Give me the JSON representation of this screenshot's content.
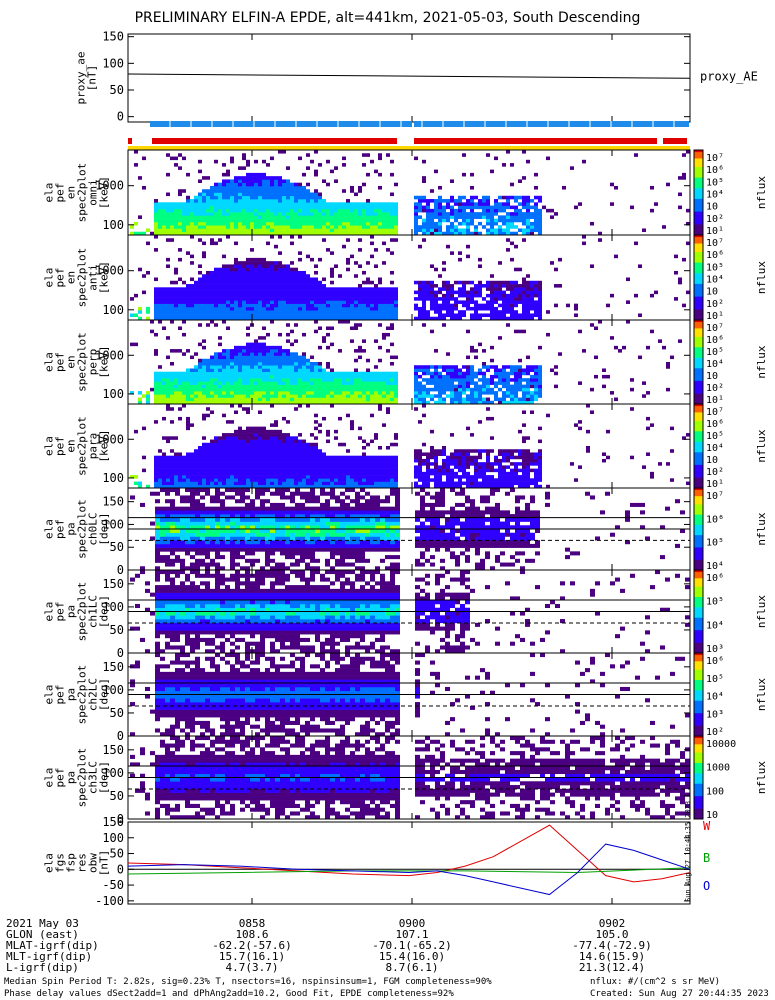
{
  "title": "PRELIMINARY ELFIN-A EPDE, alt=441km, 2021-05-03, South Descending",
  "chart_data": [
    {
      "type": "line",
      "panel": "proxy_ae",
      "ylabel": [
        "proxy_ae",
        "[nT]"
      ],
      "ylim": [
        -10,
        155
      ],
      "yticks": [
        "150",
        "100",
        "50",
        "0"
      ],
      "series": [
        {
          "name": "proxy_AE",
          "x": [
            0,
            1
          ],
          "values": [
            80,
            72
          ]
        }
      ],
      "legend_placement": "right"
    },
    {
      "type": "heatmap",
      "panel": "ela_pef_en_spec2plot_omni",
      "ylabel": [
        "ela",
        "pef",
        "en",
        "spec2plot",
        "omni",
        "[keV]"
      ],
      "yticks": [
        "1000",
        "100"
      ],
      "scale": "log",
      "colorbar_label": "nflux",
      "colorbar_ticks": [
        "10⁷",
        "10⁶",
        "10⁵",
        "10⁴",
        "10⁳",
        "10²",
        "10¹"
      ]
    },
    {
      "type": "heatmap",
      "panel": "ela_pef_en_spec2plot_anti",
      "ylabel": [
        "ela",
        "pef",
        "en",
        "spec2plot",
        "anti",
        "[keV]"
      ],
      "yticks": [
        "1000",
        "100"
      ],
      "scale": "log",
      "colorbar_label": "nflux",
      "colorbar_ticks": [
        "10⁷",
        "10⁶",
        "10⁵",
        "10⁴",
        "10⁳",
        "10²",
        "10¹"
      ]
    },
    {
      "type": "heatmap",
      "panel": "ela_pef_en_spec2plot_perp",
      "ylabel": [
        "ela",
        "pef",
        "en",
        "spec2plot",
        "perp",
        "[keV]"
      ],
      "yticks": [
        "1000",
        "100"
      ],
      "scale": "log",
      "colorbar_label": "nflux",
      "colorbar_ticks": [
        "10⁷",
        "10⁶",
        "10⁵",
        "10⁴",
        "10⁳",
        "10²",
        "10¹"
      ]
    },
    {
      "type": "heatmap",
      "panel": "ela_pef_en_spec2plot_para",
      "ylabel": [
        "ela",
        "pef",
        "en",
        "spec2plot",
        "para",
        "[keV]"
      ],
      "yticks": [
        "1000",
        "100"
      ],
      "scale": "log",
      "colorbar_label": "nflux",
      "colorbar_ticks": [
        "10⁷",
        "10⁶",
        "10⁵",
        "10⁴",
        "10⁳",
        "10²",
        "10¹"
      ]
    },
    {
      "type": "heatmap",
      "panel": "ela_pef_pa_spec2plot_ch0LC",
      "ylabel": [
        "ela",
        "pef",
        "pa",
        "spec2plot",
        "ch0LC",
        "[deg]"
      ],
      "yticks": [
        "150",
        "100",
        "50",
        "0"
      ],
      "ylim": [
        0,
        180
      ],
      "colorbar_label": "nflux",
      "colorbar_ticks": [
        "10⁷",
        "10⁶",
        "10⁵",
        "10⁴"
      ]
    },
    {
      "type": "heatmap",
      "panel": "ela_pef_pa_spec2plot_ch1LC",
      "ylabel": [
        "ela",
        "pef",
        "pa",
        "spec2plot",
        "ch1LC",
        "[deg]"
      ],
      "yticks": [
        "150",
        "100",
        "50",
        "0"
      ],
      "ylim": [
        0,
        180
      ],
      "colorbar_label": "nflux",
      "colorbar_ticks": [
        "10⁶",
        "10⁵",
        "10⁴",
        "10³"
      ]
    },
    {
      "type": "heatmap",
      "panel": "ela_pef_pa_spec2plot_ch2LC",
      "ylabel": [
        "ela",
        "pef",
        "pa",
        "spec2plot",
        "ch2LC",
        "[deg]"
      ],
      "yticks": [
        "150",
        "100",
        "50",
        "0"
      ],
      "ylim": [
        0,
        180
      ],
      "colorbar_label": "nflux",
      "colorbar_ticks": [
        "10⁶",
        "10⁵",
        "10⁴",
        "10³",
        "10²"
      ]
    },
    {
      "type": "heatmap",
      "panel": "ela_pef_pa_spec2plot_ch3LC",
      "ylabel": [
        "ela",
        "pef",
        "pa",
        "spec2plot",
        "ch3LC",
        "[deg]"
      ],
      "yticks": [
        "150",
        "100",
        "50",
        "0"
      ],
      "ylim": [
        0,
        180
      ],
      "colorbar_label": "nflux",
      "colorbar_ticks": [
        "10000",
        "1000",
        "100",
        "10"
      ]
    },
    {
      "type": "line",
      "panel": "ela_fgs_fsp_res_obw",
      "ylabel": [
        "ela",
        "fgs",
        "fsp",
        "res",
        "obw",
        "[nT]"
      ],
      "ylim": [
        -110,
        150
      ],
      "yticks": [
        "150",
        "100",
        "50",
        "0",
        "-50",
        "-100"
      ],
      "series": [
        {
          "name": "W",
          "color": "#e00000",
          "x": [
            0,
            0.1,
            0.2,
            0.3,
            0.4,
            0.5,
            0.55,
            0.6,
            0.65,
            0.7,
            0.75,
            0.8,
            0.85,
            0.9,
            0.95,
            1.0
          ],
          "values": [
            20,
            15,
            5,
            -5,
            -15,
            -20,
            -10,
            10,
            40,
            90,
            140,
            60,
            -20,
            -40,
            -30,
            -10
          ]
        },
        {
          "name": "B",
          "color": "#00a000",
          "x": [
            0,
            0.2,
            0.4,
            0.6,
            0.8,
            1.0
          ],
          "values": [
            -15,
            -10,
            -5,
            -5,
            -10,
            5
          ]
        },
        {
          "name": "O",
          "color": "#0000d0",
          "x": [
            0,
            0.1,
            0.2,
            0.3,
            0.4,
            0.5,
            0.55,
            0.6,
            0.65,
            0.7,
            0.75,
            0.8,
            0.85,
            0.9,
            0.95,
            1.0
          ],
          "values": [
            10,
            15,
            10,
            0,
            -5,
            -10,
            -5,
            -20,
            -40,
            -60,
            -80,
            -10,
            80,
            60,
            30,
            0
          ]
        }
      ],
      "legend_placement": "right"
    }
  ],
  "x_axis": {
    "tick_labels": [
      "0858",
      "0900",
      "0902"
    ],
    "rows": [
      {
        "label": "2021 May 03",
        "values": [
          "",
          "",
          ""
        ]
      },
      {
        "label": "GLON (east)",
        "values": [
          "108.6",
          "107.1",
          "105.0"
        ]
      },
      {
        "label": "MLAT-igrf(dip)",
        "values": [
          "-62.2(-57.6)",
          "-70.1(-65.2)",
          "-77.4(-72.9)"
        ]
      },
      {
        "label": "MLT-igrf(dip)",
        "values": [
          "15.7(16.1)",
          "15.4(16.0)",
          "14.6(15.9)"
        ]
      },
      {
        "label": "L-igrf(dip)",
        "values": [
          "4.7(3.7)",
          "8.7(6.1)",
          "21.3(12.4)"
        ]
      }
    ]
  },
  "footer": {
    "line1": "Median Spin Period T: 2.82s, sig=0.23% T, nsectors=16, nspinsinsum=1, FGM completeness=90%",
    "line2": "Phase delay values dSect2add=1 and dPhAng2add=10.2, Good Fit, EPDE completeness=92%",
    "units": "nflux: #/(cm^2 s sr MeV)",
    "created": "Created: Sun Aug 27 20:44:35 2023",
    "side_stamp": "Sun Aug 27 10:44:35 2023"
  },
  "colors": {
    "w": "#e00000",
    "b": "#00a000",
    "o": "#0000d0",
    "bar_blue": "#1e8ce8",
    "bar_red": "#e00000",
    "bar_yellow": "#ffd700"
  }
}
